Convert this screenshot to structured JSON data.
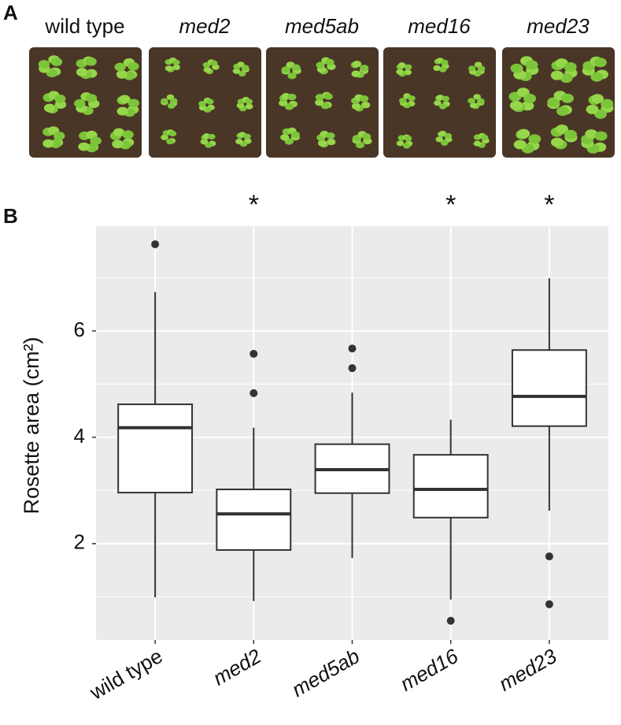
{
  "panel_a": {
    "label": "A",
    "images": [
      "wild type",
      "med2",
      "med5ab",
      "med16",
      "med23"
    ]
  },
  "chart_data": {
    "type": "box",
    "panel_label": "B",
    "ylabel": "Rosette area (cm²)",
    "categories": [
      "wild type",
      "med2",
      "med5ab",
      "med16",
      "med23"
    ],
    "boxes": [
      {
        "whisker_low": 0.99,
        "q1": 2.96,
        "median": 4.18,
        "q3": 4.62,
        "whisker_high": 6.73,
        "outliers": [
          7.63
        ]
      },
      {
        "whisker_low": 0.92,
        "q1": 1.88,
        "median": 2.56,
        "q3": 3.02,
        "whisker_high": 4.18,
        "outliers": [
          5.57,
          4.83
        ]
      },
      {
        "whisker_low": 1.73,
        "q1": 2.95,
        "median": 3.39,
        "q3": 3.87,
        "whisker_high": 4.84,
        "outliers": [
          5.67,
          5.3
        ]
      },
      {
        "whisker_low": 0.95,
        "q1": 2.49,
        "median": 3.02,
        "q3": 3.67,
        "whisker_high": 4.33,
        "outliers": [
          0.55
        ]
      },
      {
        "whisker_low": 2.62,
        "q1": 4.21,
        "median": 4.77,
        "q3": 5.64,
        "whisker_high": 6.99,
        "outliers": [
          1.76,
          0.86
        ]
      }
    ],
    "annotations": [
      {
        "category": "med2",
        "text": "*"
      },
      {
        "category": "med16",
        "text": "*"
      },
      {
        "category": "med23",
        "text": "*"
      }
    ],
    "ylim": [
      0.19,
      7.97
    ],
    "yticks": [
      2,
      4,
      6
    ],
    "minor_yticks": [
      1,
      3,
      5,
      7
    ],
    "grid": true,
    "panel_color": "#ebebeb",
    "box_color": "#ffffff",
    "line_color": "#333333"
  }
}
